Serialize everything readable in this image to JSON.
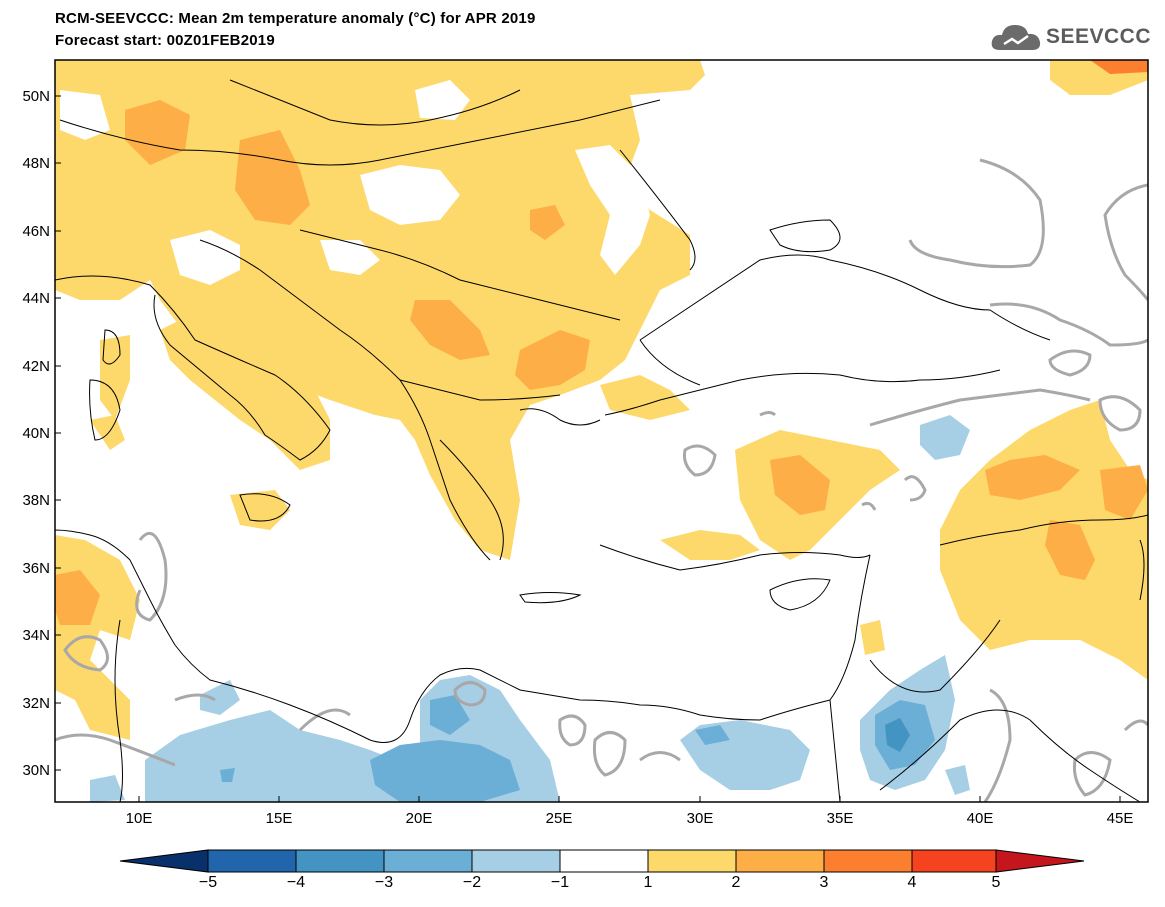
{
  "title_line1": "RCM-SEEVCCC: Mean 2m temperature anomaly (°C) for APR 2019",
  "title_line2": "Forecast start: 00Z01FEB2019",
  "logo_text": "SEEVCCC",
  "logo_icon": "cloud-icon",
  "map": {
    "lon_range": [
      7,
      46
    ],
    "lat_range": [
      29,
      51
    ],
    "lat_ticks": [
      "50N",
      "48N",
      "46N",
      "44N",
      "42N",
      "40N",
      "38N",
      "36N",
      "34N",
      "32N",
      "30N"
    ],
    "lon_ticks": [
      "10E",
      "15E",
      "20E",
      "25E",
      "30E",
      "35E",
      "40E",
      "45E"
    ]
  },
  "colorbar": {
    "labels": [
      "−5",
      "−4",
      "−3",
      "−2",
      "−1",
      "1",
      "2",
      "3",
      "4",
      "5"
    ],
    "colors": [
      "#08306b",
      "#2166ac",
      "#4393c3",
      "#6baed6",
      "#a6cfe6",
      "#ffffff",
      "#fdd86b",
      "#fdae46",
      "#fc7f30",
      "#f4431e",
      "#c4161c"
    ]
  },
  "anomaly_colors": {
    "warm_1_2": "#fdd86b",
    "warm_2_3": "#fdae46",
    "warm_3_4": "#fc7f30",
    "cool_1_2": "#a6cfe6",
    "cool_2_3": "#6baed6",
    "cool_3_4": "#4393c3",
    "contour_gray": "#a8a8a8"
  }
}
